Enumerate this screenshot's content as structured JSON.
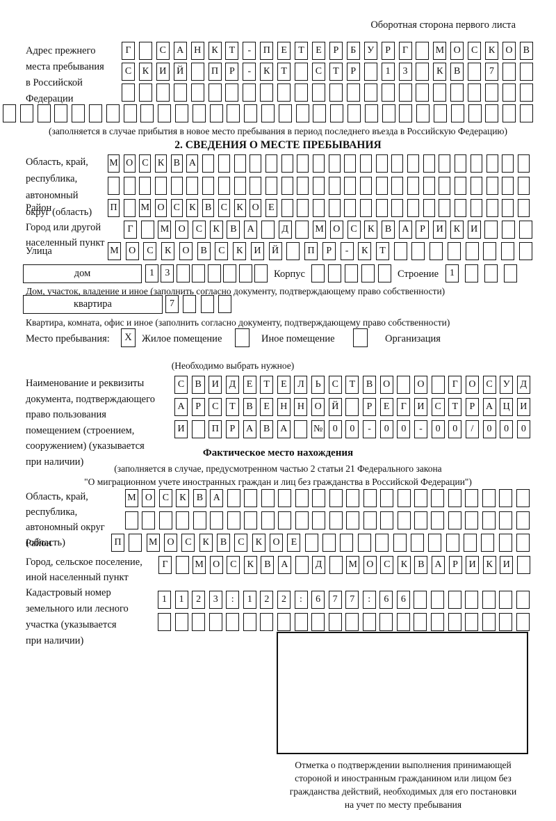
{
  "page": {
    "header": "Оборотная сторона первого листа"
  },
  "prev_address": {
    "label": "Адрес прежнего\nместа пребывания\nв Российской\nФедерации",
    "rows": [
      [
        "Г",
        "",
        "С",
        "А",
        "Н",
        "К",
        "Т",
        "-",
        "П",
        "Е",
        "Т",
        "Е",
        "Р",
        "Б",
        "У",
        "Р",
        "Г",
        "",
        "М",
        "О",
        "С",
        "К",
        "О",
        "В"
      ],
      [
        "С",
        "К",
        "И",
        "Й",
        "",
        "П",
        "Р",
        "-",
        "К",
        "Т",
        "",
        "С",
        "Т",
        "Р",
        "",
        "1",
        "3",
        "",
        "К",
        "В",
        "",
        "7",
        "",
        ""
      ],
      [
        "",
        "",
        "",
        "",
        "",
        "",
        "",
        "",
        "",
        "",
        "",
        "",
        "",
        "",
        "",
        "",
        "",
        "",
        "",
        "",
        "",
        "",
        "",
        ""
      ],
      [
        "",
        "",
        "",
        "",
        "",
        "",
        "",
        "",
        "",
        "",
        "",
        "",
        "",
        "",
        "",
        "",
        "",
        "",
        "",
        "",
        "",
        "",
        "",
        "",
        "",
        "",
        "",
        "",
        "",
        "",
        ""
      ]
    ],
    "note": "(заполняется в случае прибытия в новое место пребывания в период последнего въезда в Российскую Федерацию)"
  },
  "section2": {
    "title": "2. СВЕДЕНИЯ О МЕСТЕ ПРЕБЫВАНИЯ",
    "oblast": {
      "label": "Область, край,\nреспублика,\nавтономный\nокруг (область)",
      "rows": [
        [
          "М",
          "О",
          "С",
          "К",
          "В",
          "А",
          "",
          "",
          "",
          "",
          "",
          "",
          "",
          "",
          "",
          "",
          "",
          "",
          "",
          "",
          "",
          "",
          "",
          "",
          "",
          "",
          ""
        ],
        [
          "",
          "",
          "",
          "",
          "",
          "",
          "",
          "",
          "",
          "",
          "",
          "",
          "",
          "",
          "",
          "",
          "",
          "",
          "",
          "",
          "",
          "",
          "",
          "",
          "",
          "",
          ""
        ]
      ]
    },
    "raion": {
      "label": "Район",
      "row": [
        "П",
        "",
        "М",
        "О",
        "С",
        "К",
        "В",
        "С",
        "К",
        "О",
        "Е",
        "",
        "",
        "",
        "",
        "",
        "",
        "",
        "",
        "",
        "",
        "",
        "",
        "",
        "",
        "",
        ""
      ]
    },
    "gorod": {
      "label": "Город или другой\nнаселенный пункт",
      "row": [
        "Г",
        "",
        "М",
        "О",
        "С",
        "К",
        "В",
        "А",
        "",
        "Д",
        "",
        "М",
        "О",
        "С",
        "К",
        "В",
        "А",
        "Р",
        "И",
        "К",
        "И",
        "",
        "",
        ""
      ]
    },
    "ulitsa": {
      "label": "Улица",
      "row": [
        "М",
        "О",
        "С",
        "К",
        "О",
        "В",
        "С",
        "К",
        "И",
        "Й",
        "",
        "П",
        "Р",
        "-",
        "К",
        "Т",
        "",
        "",
        "",
        "",
        "",
        "",
        "",
        ""
      ]
    },
    "dom": {
      "label": "дом",
      "cells": [
        "1",
        "3",
        "",
        "",
        "",
        "",
        "",
        ""
      ],
      "korpus_label": "Корпус",
      "korpus_cells": [
        "",
        "",
        "",
        "",
        ""
      ],
      "stroenie_label": "Строение",
      "stroenie_cells": [
        "1",
        "",
        "",
        ""
      ],
      "note": "Дом, участок, владение и иное (заполнить согласно документу, подтверждающему право собственности)"
    },
    "kvartira": {
      "label": "квартира",
      "cells": [
        "7",
        "",
        "",
        ""
      ],
      "note": "Квартира, комната, офис и иное (заполнить согласно документу, подтверждающему право собственности)"
    },
    "mesto": {
      "label": "Место пребывания:",
      "options": [
        {
          "label": "Жилое помещение",
          "checked": "X"
        },
        {
          "label": "Иное помещение",
          "checked": ""
        },
        {
          "label": "Организация",
          "checked": ""
        }
      ],
      "note": "(Необходимо выбрать нужное)"
    },
    "doc": {
      "label": "Наименование и реквизиты\nдокумента, подтверждающего\nправо пользования\nпомещением (строением,\nсооружением) (указывается\nпри наличии)",
      "rows": [
        [
          "С",
          "В",
          "И",
          "Д",
          "Е",
          "Т",
          "Е",
          "Л",
          "Ь",
          "С",
          "Т",
          "В",
          "О",
          "",
          "О",
          "",
          "Г",
          "О",
          "С",
          "У",
          "Д"
        ],
        [
          "А",
          "Р",
          "С",
          "Т",
          "В",
          "Е",
          "Н",
          "Н",
          "О",
          "Й",
          "",
          "Р",
          "Е",
          "Г",
          "И",
          "С",
          "Т",
          "Р",
          "А",
          "Ц",
          "И"
        ],
        [
          "И",
          "",
          "П",
          "Р",
          "А",
          "В",
          "А",
          "",
          "№",
          "0",
          "0",
          "-",
          "0",
          "0",
          "-",
          "0",
          "0",
          "/",
          "0",
          "0",
          "0"
        ]
      ]
    }
  },
  "fact": {
    "title": "Фактическое место нахождения",
    "note1": "(заполняется в случае, предусмотренном частью 2 статьи 21 Федерального закона",
    "note2": "\"О миграционном учете иностранных граждан и лиц без гражданства в Российской Федерации\")",
    "oblast": {
      "label": "Область, край,\nреспублика,\nавтономный округ\n(область)",
      "rows": [
        [
          "М",
          "О",
          "С",
          "К",
          "В",
          "А",
          "",
          "",
          "",
          "",
          "",
          "",
          "",
          "",
          "",
          "",
          "",
          "",
          "",
          "",
          "",
          "",
          "",
          ""
        ],
        [
          "",
          "",
          "",
          "",
          "",
          "",
          "",
          "",
          "",
          "",
          "",
          "",
          "",
          "",
          "",
          "",
          "",
          "",
          "",
          "",
          "",
          "",
          "",
          ""
        ]
      ]
    },
    "raion": {
      "label": "Район",
      "row": [
        "П",
        "",
        "М",
        "О",
        "С",
        "К",
        "В",
        "С",
        "К",
        "О",
        "Е",
        "",
        "",
        "",
        "",
        "",
        "",
        "",
        "",
        "",
        "",
        "",
        "",
        ""
      ]
    },
    "gorod": {
      "label": "Город, сельское поселение,\nиной населенный пункт",
      "row": [
        "Г",
        "",
        "М",
        "О",
        "С",
        "К",
        "В",
        "А",
        "",
        "Д",
        "",
        "М",
        "О",
        "С",
        "К",
        "В",
        "А",
        "Р",
        "И",
        "К",
        "И",
        ""
      ]
    },
    "cadastre": {
      "label": "Кадастровый номер\nземельного или лесного\nучастка (указывается\nпри наличии)",
      "rows": [
        [
          "1",
          "1",
          "2",
          "3",
          ":",
          "1",
          "2",
          "2",
          ":",
          "6",
          "7",
          "7",
          ":",
          "6",
          "6",
          "",
          "",
          "",
          "",
          "",
          "",
          ""
        ],
        [
          "",
          "",
          "",
          "",
          "",
          "",
          "",
          "",
          "",
          "",
          "",
          "",
          "",
          "",
          "",
          "",
          "",
          "",
          "",
          "",
          "",
          ""
        ]
      ]
    },
    "mark_note": "Отметка о подтверждении выполнения принимающей\nстороной и иностранным гражданином или лицом без\nгражданства действий, необходимых для его постановки\nна учет по месту пребывания"
  }
}
